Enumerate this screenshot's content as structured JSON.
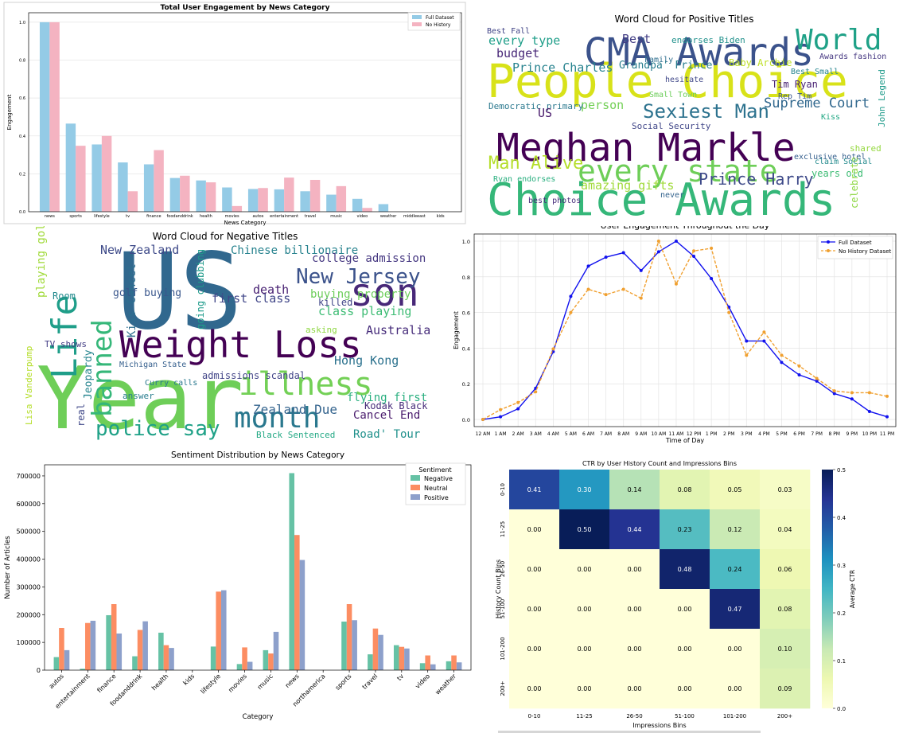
{
  "colors": {
    "full": "#94cbe6",
    "nohist": "#f4b3c1",
    "line_full": "#1111ee",
    "line_nohist": "#f0a030",
    "neg": "#66c2a5",
    "neu": "#fc8d62",
    "pos": "#8da0cb"
  },
  "chart_data": [
    {
      "id": "engagement_by_category",
      "type": "bar",
      "title": "Total User Engagement by News Category",
      "xlabel": "News Category",
      "ylabel": "Engagement",
      "ylim": [
        0,
        1.05
      ],
      "yticks": [
        "0.0",
        "0.2",
        "0.4",
        "0.6",
        "0.8",
        "1.0"
      ],
      "grid": true,
      "legend_position": "top-right",
      "categories": [
        "news",
        "sports",
        "lifestyle",
        "tv",
        "finance",
        "foodanddrink",
        "health",
        "movies",
        "autos",
        "entertainment",
        "travel",
        "music",
        "video",
        "weather",
        "middleeast",
        "kids"
      ],
      "series": [
        {
          "name": "Full Dataset",
          "values": [
            1.0,
            0.465,
            0.355,
            0.26,
            0.25,
            0.178,
            0.165,
            0.128,
            0.12,
            0.118,
            0.108,
            0.09,
            0.068,
            0.04,
            0.0,
            0.0
          ]
        },
        {
          "name": "No History",
          "values": [
            1.0,
            0.348,
            0.4,
            0.108,
            0.325,
            0.19,
            0.155,
            0.03,
            0.125,
            0.18,
            0.168,
            0.135,
            0.02,
            0.0,
            0.0,
            0.0
          ]
        }
      ]
    },
    {
      "id": "positive_wordcloud",
      "type": "wordcloud",
      "title": "Word Cloud for Positive Titles",
      "words": [
        {
          "text": "Meghan Markle",
          "color": "#440154"
        },
        {
          "text": "People Choice",
          "color": "#d8e219"
        },
        {
          "text": "Choice Awards",
          "color": "#35b779"
        },
        {
          "text": "CMA Awards",
          "color": "#3b528b"
        },
        {
          "text": "every state",
          "color": "#6ece58"
        },
        {
          "text": "World",
          "color": "#1fa187"
        },
        {
          "text": "Sexiest Man",
          "color": "#2c728e"
        },
        {
          "text": "Prince Harry",
          "color": "#3e4a89"
        },
        {
          "text": "Man Alive",
          "color": "#b5de2b"
        },
        {
          "text": "Supreme Court",
          "color": "#31688e"
        },
        {
          "text": "Prince Charles",
          "color": "#26828e"
        },
        {
          "text": "budget",
          "color": "#482878"
        },
        {
          "text": "every type",
          "color": "#1f9e89"
        },
        {
          "text": "Best",
          "color": "#433e85"
        },
        {
          "text": "amazing gifts",
          "color": "#a0da39"
        },
        {
          "text": "person",
          "color": "#73d056"
        },
        {
          "text": "Grandpa' Prince",
          "color": "#287d8e"
        },
        {
          "text": "Baby Archie",
          "color": "#bddf26"
        },
        {
          "text": "Tim Ryan",
          "color": "#482173"
        },
        {
          "text": "endorses Biden",
          "color": "#21918c"
        },
        {
          "text": "Democratic primary",
          "color": "#2a788e"
        },
        {
          "text": "Social Security",
          "color": "#404688"
        },
        {
          "text": "John Legend",
          "color": "#1e9b8a"
        },
        {
          "text": "years old",
          "color": "#3dbc74"
        },
        {
          "text": "exclusive hotel",
          "color": "#355f8d"
        },
        {
          "text": "Ryan endorses",
          "color": "#29af7f"
        },
        {
          "text": "best photos",
          "color": "#472d7b"
        },
        {
          "text": "Family",
          "color": "#2e6e8e"
        },
        {
          "text": "US",
          "color": "#481a6c"
        },
        {
          "text": "Rep Tim",
          "color": "#39568c"
        },
        {
          "text": "Awards fashion",
          "color": "#453781"
        },
        {
          "text": "Best Small",
          "color": "#25848e"
        },
        {
          "text": "Small Town",
          "color": "#6ccd5a"
        },
        {
          "text": "never",
          "color": "#33638d"
        },
        {
          "text": "hesitate",
          "color": "#3f4788"
        },
        {
          "text": "Kiss",
          "color": "#22a884"
        },
        {
          "text": "celebrate",
          "color": "#8fd744"
        },
        {
          "text": "claim Social",
          "color": "#238a8d"
        },
        {
          "text": "shared",
          "color": "#95d840"
        },
        {
          "text": "Best Fall",
          "color": "#414487"
        }
      ]
    },
    {
      "id": "negative_wordcloud",
      "type": "wordcloud",
      "title": "Word Cloud for Negative Titles",
      "words": [
        {
          "text": "Year",
          "color": "#6ece58"
        },
        {
          "text": "US",
          "color": "#31688e"
        },
        {
          "text": "Weight Loss",
          "color": "#440154"
        },
        {
          "text": "Life",
          "color": "#1f9e89"
        },
        {
          "text": "banned",
          "color": "#35b779"
        },
        {
          "text": "month",
          "color": "#2a788e"
        },
        {
          "text": "illness",
          "color": "#73d056"
        },
        {
          "text": "son",
          "color": "#482878"
        },
        {
          "text": "New Jersey",
          "color": "#3b528b"
        },
        {
          "text": "police say",
          "color": "#1fa187"
        },
        {
          "text": "New Zealand",
          "color": "#3e4a89"
        },
        {
          "text": "Chinese billionaire",
          "color": "#26828e"
        },
        {
          "text": "college admission",
          "color": "#453781"
        },
        {
          "text": "first class",
          "color": "#404688"
        },
        {
          "text": "Australia",
          "color": "#472d7b"
        },
        {
          "text": "Zealand Due",
          "color": "#33638d"
        },
        {
          "text": "Hong Kong",
          "color": "#2c728e"
        },
        {
          "text": "Cancel End",
          "color": "#481a6c"
        },
        {
          "text": "flying first",
          "color": "#29af7f"
        },
        {
          "text": "Road' Tour",
          "color": "#21918c"
        },
        {
          "text": "buying property",
          "color": "#6ccd5a"
        },
        {
          "text": "class playing",
          "color": "#3dbc74"
        },
        {
          "text": "Kiss Cancel",
          "color": "#2e6e8e"
        },
        {
          "text": "golf buying",
          "color": "#39568c"
        },
        {
          "text": "playing golf",
          "color": "#a0da39"
        },
        {
          "text": "death",
          "color": "#482173"
        },
        {
          "text": "Jeopardy",
          "color": "#25848e"
        },
        {
          "text": "admissions scandal",
          "color": "#414487"
        },
        {
          "text": "Michigan State",
          "color": "#355f8d"
        },
        {
          "text": "Black Sentenced",
          "color": "#22a884"
        },
        {
          "text": "Kodak Black",
          "color": "#472c7a"
        },
        {
          "text": "going clubbing",
          "color": "#1e9b8a"
        },
        {
          "text": "Lisa Vanderpump",
          "color": "#b5de2b"
        },
        {
          "text": "answer",
          "color": "#287d8e"
        },
        {
          "text": "real",
          "color": "#3f4788"
        },
        {
          "text": "TV shows",
          "color": "#433e85"
        },
        {
          "text": "Curry calls",
          "color": "#2a788e"
        },
        {
          "text": "Room",
          "color": "#238a8d"
        },
        {
          "text": "killed",
          "color": "#404688"
        },
        {
          "text": "asking",
          "color": "#8fd744"
        }
      ]
    },
    {
      "id": "engagement_by_hour",
      "type": "line",
      "title": "User Engagement Throughout the Day",
      "xlabel": "Time of Day",
      "ylabel": "Engagement",
      "ylim": [
        -0.04,
        1.04
      ],
      "yticks": [
        "0.0",
        "0.2",
        "0.4",
        "0.6",
        "0.8",
        "1.0"
      ],
      "grid": true,
      "legend_position": "top-right",
      "x": [
        "12 AM",
        "1 AM",
        "2 AM",
        "3 AM",
        "4 AM",
        "5 AM",
        "6 AM",
        "7 AM",
        "8 AM",
        "9 AM",
        "10 AM",
        "11 AM",
        "12 PM",
        "1 PM",
        "2 PM",
        "3 PM",
        "4 PM",
        "5 PM",
        "6 PM",
        "7 PM",
        "8 PM",
        "9 PM",
        "10 PM",
        "11 PM"
      ],
      "series": [
        {
          "name": "Full Dataset",
          "values": [
            0.0,
            0.015,
            0.06,
            0.175,
            0.38,
            0.69,
            0.86,
            0.91,
            0.935,
            0.835,
            0.94,
            1.0,
            0.915,
            0.79,
            0.63,
            0.44,
            0.44,
            0.32,
            0.25,
            0.215,
            0.145,
            0.115,
            0.045,
            0.015
          ]
        },
        {
          "name": "No History Dataset",
          "values": [
            0.0,
            0.055,
            0.095,
            0.155,
            0.395,
            0.6,
            0.73,
            0.7,
            0.73,
            0.68,
            1.0,
            0.76,
            0.945,
            0.96,
            0.6,
            0.36,
            0.49,
            0.36,
            0.3,
            0.23,
            0.16,
            0.15,
            0.15,
            0.13
          ]
        }
      ]
    },
    {
      "id": "sentiment_by_category",
      "type": "bar",
      "title": "Sentiment Distribution by News Category",
      "xlabel": "Category",
      "ylabel": "Number of Articles",
      "ylim": [
        0,
        740000
      ],
      "yticks": [
        "0",
        "100000",
        "200000",
        "300000",
        "400000",
        "500000",
        "600000",
        "700000"
      ],
      "grid": false,
      "legend_title": "Sentiment",
      "legend_position": "top-right",
      "categories": [
        "autos",
        "entertainment",
        "finance",
        "foodanddrink",
        "health",
        "kids",
        "lifestyle",
        "movies",
        "music",
        "news",
        "northamerica",
        "sports",
        "travel",
        "tv",
        "video",
        "weather"
      ],
      "series": [
        {
          "name": "Negative",
          "values": [
            47000,
            5000,
            198000,
            50000,
            135000,
            0,
            85000,
            22000,
            72000,
            710000,
            0,
            175000,
            57000,
            90000,
            25000,
            32000
          ]
        },
        {
          "name": "Neutral",
          "values": [
            152000,
            170000,
            238000,
            145000,
            90000,
            0,
            283000,
            82000,
            60000,
            487000,
            0,
            238000,
            150000,
            84000,
            53000,
            53000
          ]
        },
        {
          "name": "Positive",
          "values": [
            72000,
            178000,
            132000,
            176000,
            80000,
            0,
            288000,
            30000,
            138000,
            397000,
            0,
            180000,
            127000,
            78000,
            21000,
            28000
          ]
        }
      ]
    },
    {
      "id": "ctr_heatmap",
      "type": "heatmap",
      "title": "CTR by User History Count and Impressions Bins",
      "xlabel": "Impressions Bins",
      "ylabel": "History Count Bins",
      "colorbar_label": "Average CTR",
      "colorbar_range": [
        0.0,
        0.5
      ],
      "colorbar_ticks": [
        "0.0",
        "0.1",
        "0.2",
        "0.3",
        "0.4",
        "0.5"
      ],
      "x": [
        "0-10",
        "11-25",
        "26-50",
        "51-100",
        "101-200",
        "200+"
      ],
      "y": [
        "0-10",
        "11-25",
        "26-50",
        "51-100",
        "101-200",
        "200+"
      ],
      "values": [
        [
          0.41,
          0.3,
          0.14,
          0.08,
          0.05,
          0.03
        ],
        [
          0.0,
          0.5,
          0.44,
          0.23,
          0.12,
          0.04
        ],
        [
          0.0,
          0.0,
          0.0,
          0.48,
          0.24,
          0.06
        ],
        [
          0.0,
          0.0,
          0.0,
          0.0,
          0.47,
          0.08
        ],
        [
          0.0,
          0.0,
          0.0,
          0.0,
          0.0,
          0.1
        ],
        [
          0.0,
          0.0,
          0.0,
          0.0,
          0.0,
          0.09
        ]
      ]
    }
  ]
}
